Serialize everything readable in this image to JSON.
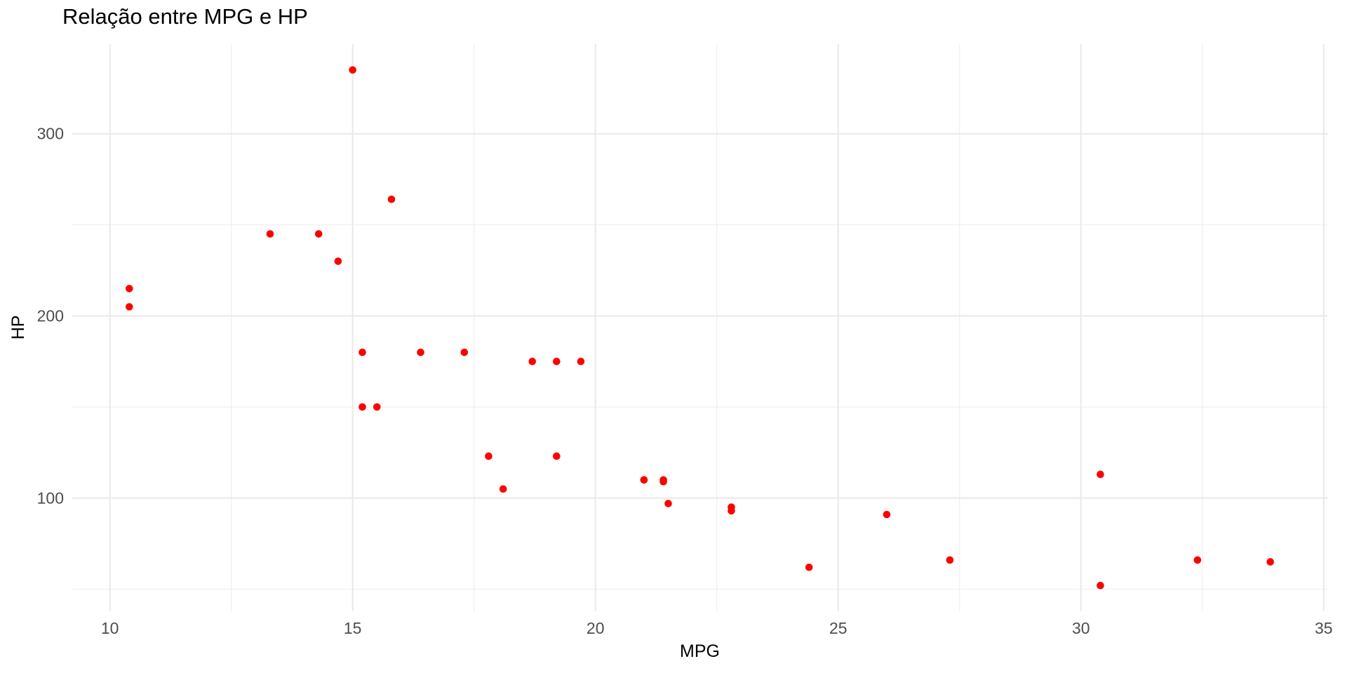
{
  "chart_data": {
    "type": "scatter",
    "title": "Relação entre MPG e HP",
    "xlabel": "MPG",
    "ylabel": "HP",
    "x_ticks": [
      10,
      15,
      20,
      25,
      30,
      35
    ],
    "x_minor_ticks": [
      12.5,
      17.5,
      22.5,
      27.5,
      32.5
    ],
    "y_ticks": [
      100,
      200,
      300
    ],
    "y_minor_ticks": [
      50,
      150,
      250
    ],
    "xlim": [
      9.225,
      35.075
    ],
    "ylim": [
      37.85,
      349.15
    ],
    "grid": true,
    "legend_position": "none",
    "point_color": "#FF0000",
    "grid_major_color": "#E9E9E9",
    "grid_minor_color": "#EFEFEF",
    "tick_label_color": "#4D4D4D",
    "axis_title_color": "#000000",
    "title_color": "#000000",
    "background_color": "#FFFFFF",
    "points_mpg_hp": [
      [
        21.0,
        110
      ],
      [
        21.0,
        110
      ],
      [
        22.8,
        93
      ],
      [
        21.4,
        110
      ],
      [
        18.7,
        175
      ],
      [
        18.1,
        105
      ],
      [
        14.3,
        245
      ],
      [
        24.4,
        62
      ],
      [
        22.8,
        95
      ],
      [
        19.2,
        123
      ],
      [
        17.8,
        123
      ],
      [
        16.4,
        180
      ],
      [
        17.3,
        180
      ],
      [
        15.2,
        180
      ],
      [
        10.4,
        205
      ],
      [
        10.4,
        215
      ],
      [
        14.7,
        230
      ],
      [
        32.4,
        66
      ],
      [
        30.4,
        52
      ],
      [
        33.9,
        65
      ],
      [
        21.5,
        97
      ],
      [
        15.5,
        150
      ],
      [
        15.2,
        150
      ],
      [
        13.3,
        245
      ],
      [
        19.2,
        175
      ],
      [
        27.3,
        66
      ],
      [
        26.0,
        91
      ],
      [
        30.4,
        113
      ],
      [
        15.8,
        264
      ],
      [
        19.7,
        175
      ],
      [
        15.0,
        335
      ],
      [
        21.4,
        109
      ]
    ]
  }
}
